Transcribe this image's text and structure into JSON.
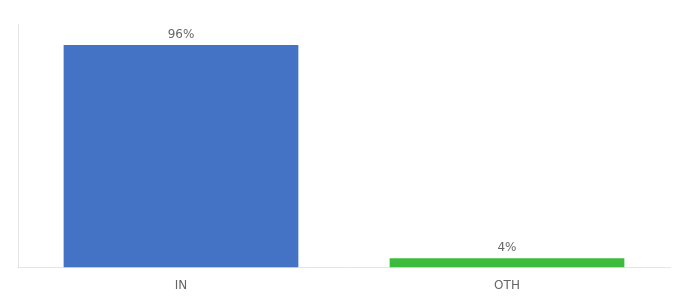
{
  "chart_data": {
    "type": "bar",
    "categories": [
      "IN",
      "OTH"
    ],
    "values": [
      96,
      4
    ],
    "value_labels": [
      "96%",
      "4%"
    ],
    "colors": [
      "#4472c4",
      "#3dbb3d"
    ],
    "ylim": [
      0,
      105
    ],
    "yticks": [],
    "grid": false,
    "tick_labels": "x",
    "data_labels": true
  }
}
